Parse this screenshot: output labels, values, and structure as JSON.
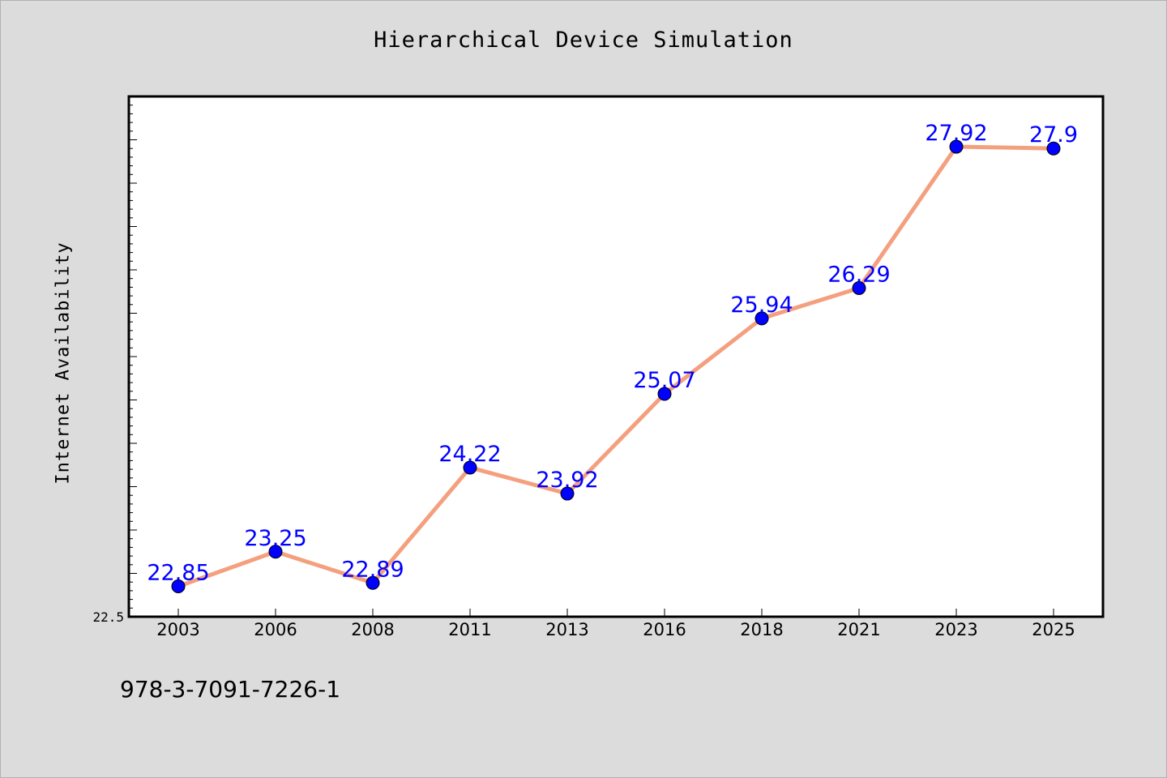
{
  "page": {
    "footer_text": "978-3-7091-7226-1"
  },
  "colors": {
    "background": "#dcdcdc",
    "plot_background": "#ffffff",
    "line": "#f4a07f",
    "marker": "#0000ff",
    "data_label": "#0000ff"
  },
  "chart_data": {
    "type": "line",
    "title": "Hierarchical Device Simulation",
    "xlabel": "",
    "ylabel": "Internet Availability",
    "categories": [
      "2003",
      "2006",
      "2008",
      "2011",
      "2013",
      "2016",
      "2018",
      "2021",
      "2023",
      "2025"
    ],
    "series": [
      {
        "values": [
          22.85,
          23.25,
          22.89,
          24.22,
          23.92,
          25.07,
          25.94,
          26.29,
          27.92,
          27.9
        ],
        "labels": [
          "22.85",
          "23.25",
          "22.89",
          "24.22",
          "23.92",
          "25.07",
          "25.94",
          "26.29",
          "27.92",
          "27.9"
        ]
      }
    ],
    "ylim": [
      22.5,
      28.5
    ],
    "y_tick_labels": [
      "22.5"
    ],
    "grid": false,
    "legend": "none"
  }
}
